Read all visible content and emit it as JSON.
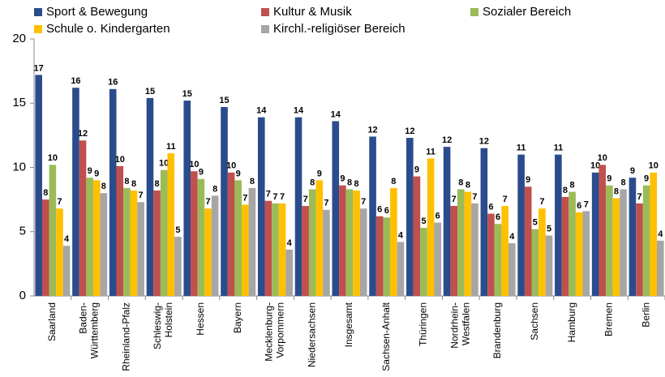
{
  "chart_data": {
    "type": "bar",
    "categories": [
      "Saarland",
      "Baden-\nWürttemberg",
      "Rheinland-Pfalz",
      "Schleswig-\nHolstein",
      "Hessen",
      "Bayern",
      "Mecklenburg-\nVorpommern",
      "Niedersachsen",
      "Insgesamt",
      "Sachsen-Anhalt",
      "Thüringen",
      "Nordrhein-\nWestfalen",
      "Brandenburg",
      "Sachsen",
      "Hamburg",
      "Bremen",
      "Berlin"
    ],
    "series": [
      {
        "name": "Sport & Bewegung",
        "color": "#2b4c8c",
        "values": [
          17.2,
          16.2,
          16.1,
          15.4,
          15.2,
          14.7,
          13.9,
          13.9,
          13.6,
          12.4,
          12.3,
          11.6,
          11.5,
          11.0,
          11.0,
          9.6,
          9.2
        ],
        "value_labels": [
          "17",
          "16",
          "16",
          "15",
          "15",
          "15",
          "14",
          "14",
          "14",
          "12",
          "12",
          "12",
          "12",
          "11",
          "11",
          "10",
          "9"
        ]
      },
      {
        "name": "Kultur & Musik",
        "color": "#c0504d",
        "values": [
          7.5,
          12.1,
          10.1,
          8.2,
          9.7,
          9.6,
          7.4,
          7.0,
          8.6,
          6.2,
          9.3,
          7.0,
          6.4,
          8.5,
          7.7,
          10.2,
          7.2
        ],
        "value_labels": [
          "8",
          "12",
          "10",
          "8",
          "10",
          "10",
          "7",
          "7",
          "9",
          "6",
          "9",
          "7",
          "6",
          "9",
          "8",
          "10",
          "7"
        ]
      },
      {
        "name": "Sozialer Bereich",
        "color": "#9bbb59",
        "values": [
          10.2,
          9.2,
          8.4,
          9.8,
          9.1,
          9.0,
          7.2,
          8.3,
          8.3,
          6.1,
          5.3,
          8.3,
          5.6,
          5.2,
          8.1,
          8.6,
          8.6
        ],
        "value_labels": [
          "10",
          "9",
          "8",
          "10",
          "9",
          "9",
          "7",
          "8",
          "8",
          "6",
          "5",
          "8",
          "6",
          "5",
          "8",
          "9",
          "9"
        ]
      },
      {
        "name": "Schule o. Kindergarten",
        "color": "#ffc000",
        "values": [
          6.8,
          9.0,
          8.2,
          11.1,
          6.8,
          7.1,
          7.2,
          9.0,
          8.2,
          8.4,
          10.7,
          8.1,
          7.0,
          6.8,
          6.5,
          7.6,
          9.6
        ],
        "value_labels": [
          "7",
          "9",
          "8",
          "11",
          "7",
          "7",
          "7",
          "9",
          "8",
          "8",
          "11",
          "8",
          "7",
          "7",
          "6",
          "8",
          "10"
        ]
      },
      {
        "name": "Kirchl.-religiöser Bereich",
        "color": "#a6a6a6",
        "values": [
          3.9,
          8.0,
          7.3,
          4.6,
          7.8,
          8.4,
          3.6,
          6.7,
          6.8,
          4.2,
          5.7,
          7.2,
          4.1,
          4.7,
          6.6,
          8.3,
          4.3
        ],
        "value_labels": [
          "4",
          "8",
          "7",
          "5",
          "8",
          "8",
          "4",
          "7",
          "7",
          "4",
          "6",
          "7",
          "4",
          "5",
          "7",
          "8",
          "4"
        ]
      }
    ],
    "ylim": [
      0,
      20
    ],
    "yticks": [
      0,
      5,
      10,
      15,
      20
    ],
    "legend": "top"
  }
}
